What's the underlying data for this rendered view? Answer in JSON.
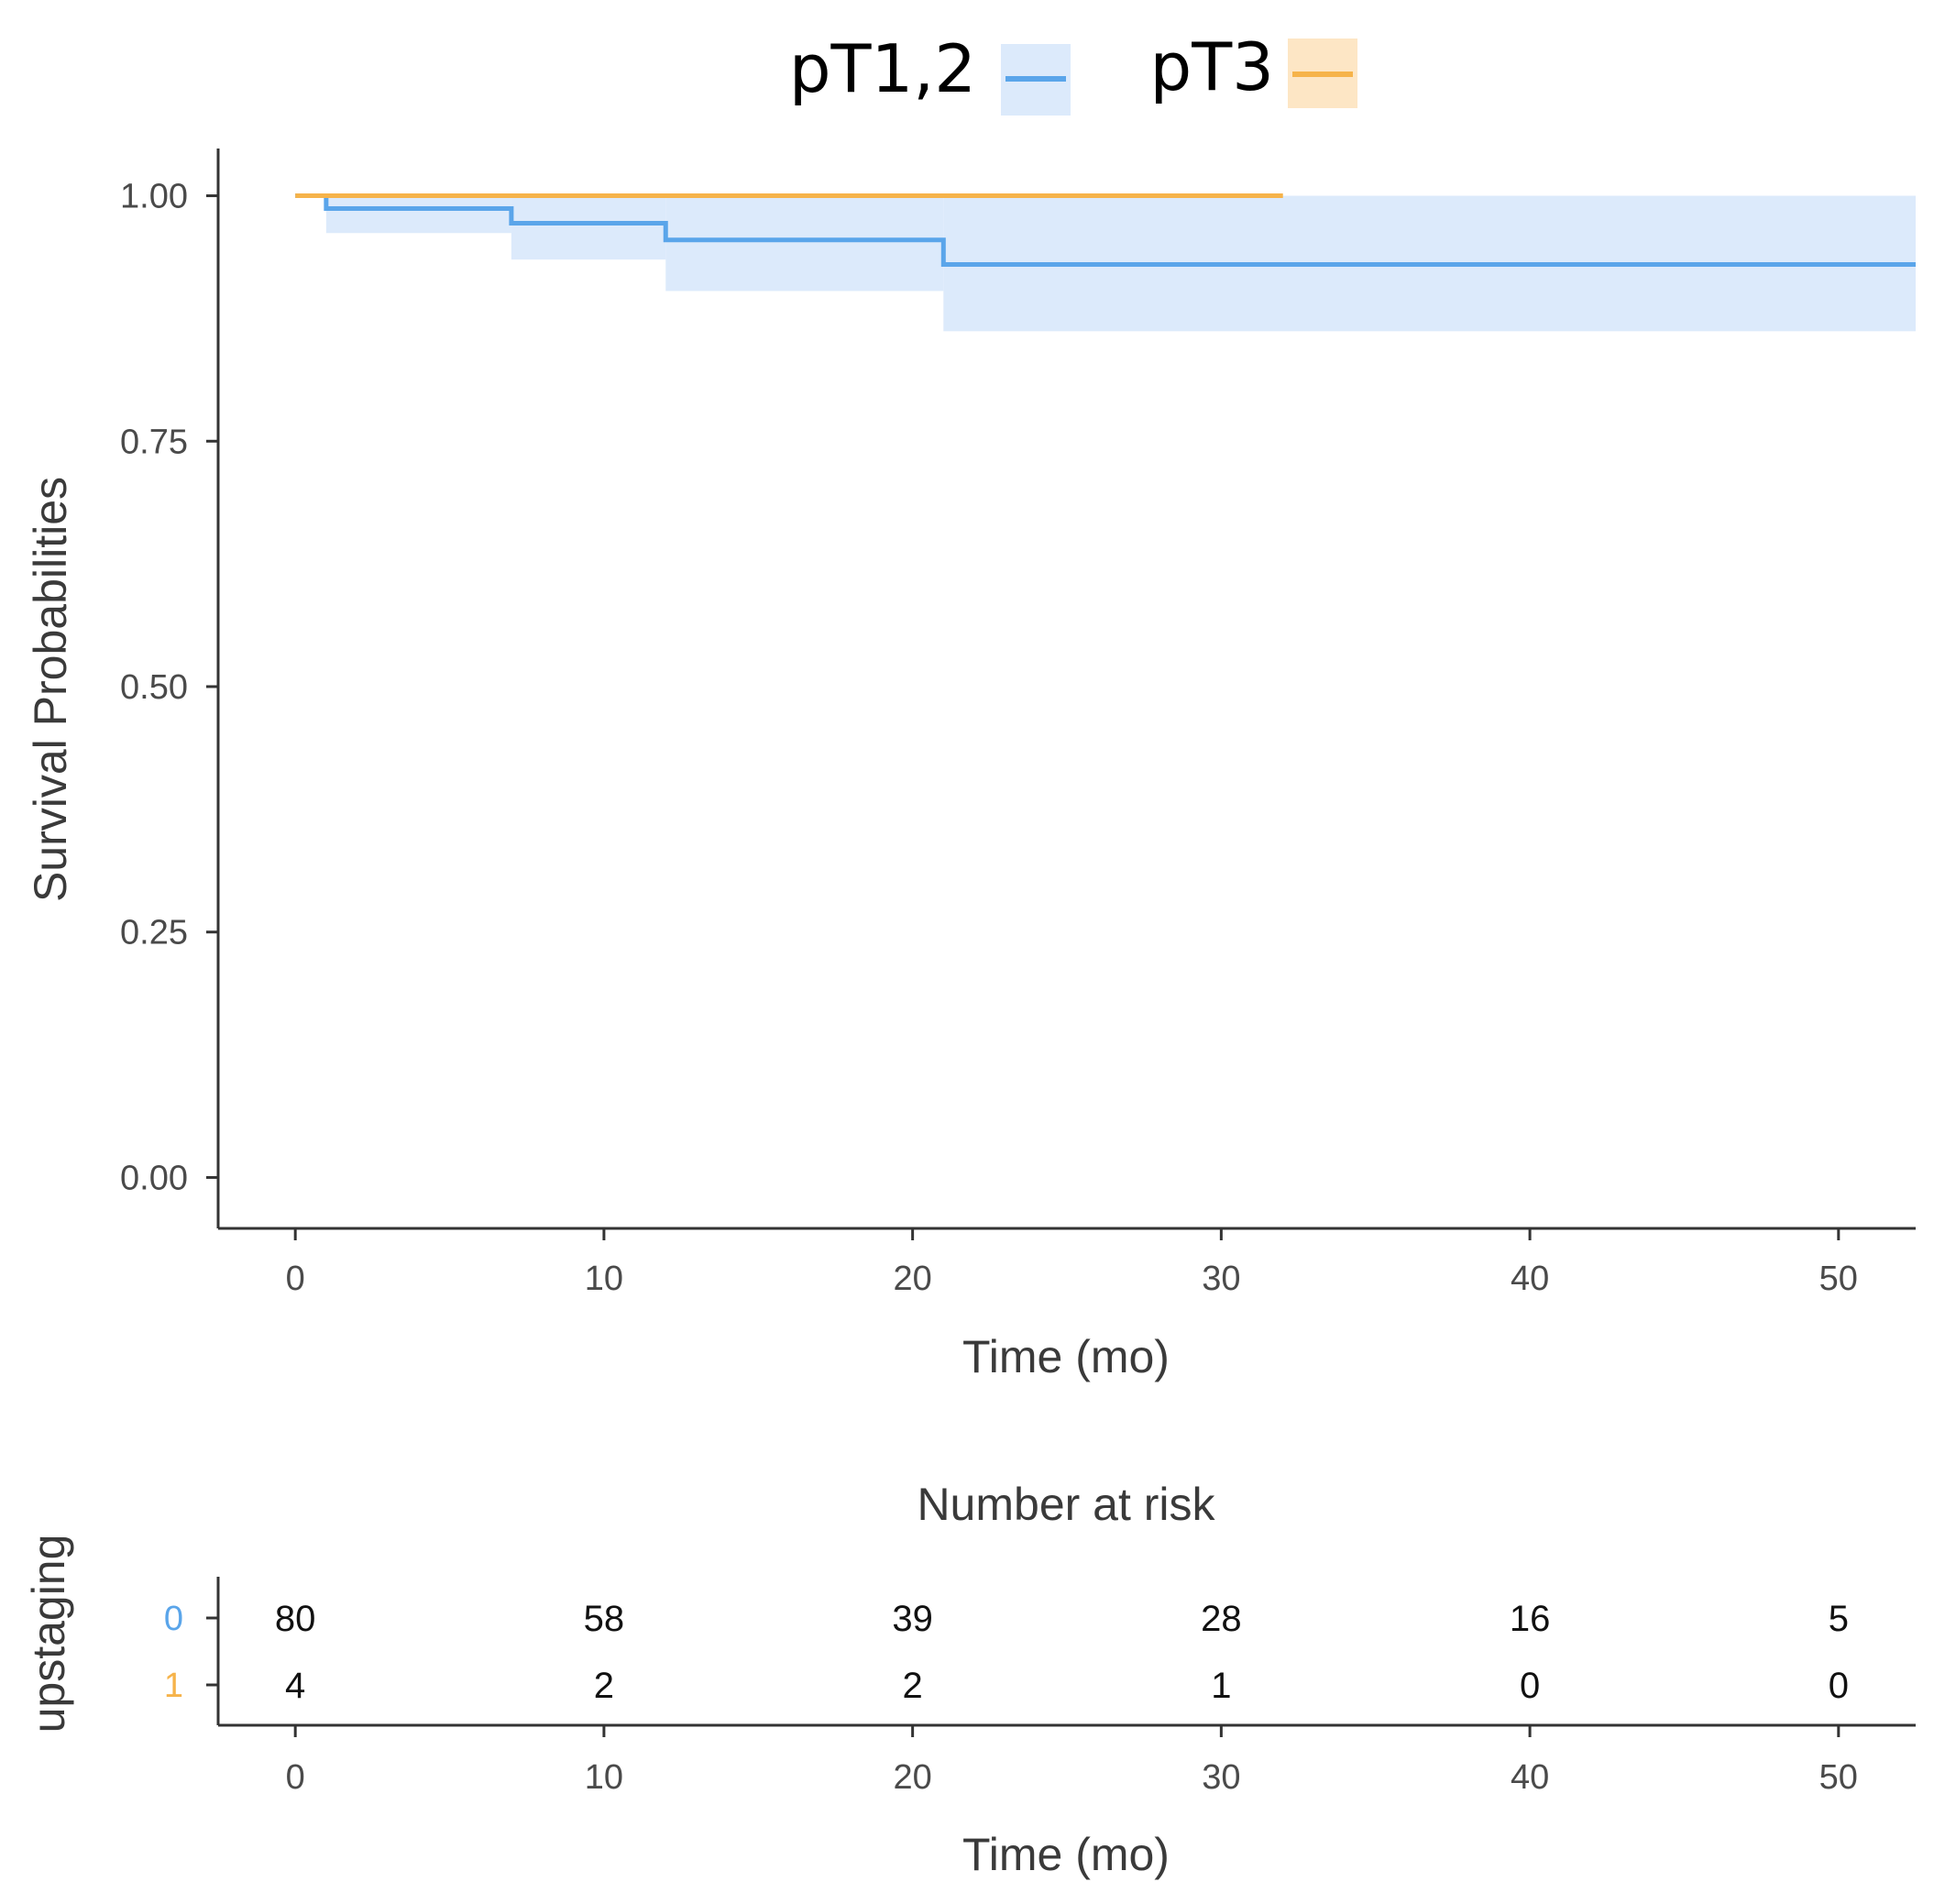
{
  "colors": {
    "series0": "#5aa5ea",
    "series0_band": "#dceafb",
    "series1": "#f6b34a",
    "series1_band": "#fde6c5",
    "axis": "#333333",
    "tick_text": "#4a4a4a",
    "label_text": "#3a3a3a",
    "risk_text": "#111111"
  },
  "chart_data": [
    {
      "type": "line",
      "subtype": "kaplan-meier-step",
      "title": "",
      "xlabel": "Time (mo)",
      "ylabel": "Survival Probabilities",
      "xlim": [
        -2.5,
        52.5
      ],
      "ylim": [
        -0.05,
        1.05
      ],
      "xticks": [
        0,
        10,
        20,
        30,
        40,
        50
      ],
      "xtick_labels": [
        "0",
        "10",
        "20",
        "30",
        "40",
        "50"
      ],
      "yticks": [
        0,
        0.25,
        0.5,
        0.75,
        1.0
      ],
      "ytick_labels": [
        "0.00",
        "0.25",
        "0.50",
        "0.75",
        "1.00"
      ],
      "grid": false,
      "legend": {
        "position": "top-center",
        "entries": [
          {
            "label": "pT1,2",
            "series": 0
          },
          {
            "label": "pT3",
            "series": 1
          }
        ]
      },
      "series": [
        {
          "name": "pT1,2",
          "color_key": "series0",
          "x": [
            0,
            1,
            7,
            12,
            21,
            52.5
          ],
          "y": [
            1.0,
            0.987,
            0.972,
            0.955,
            0.93,
            0.93
          ],
          "ci_lower": [
            1.0,
            0.962,
            0.935,
            0.903,
            0.862,
            0.862
          ],
          "ci_upper": [
            1.0,
            1.0,
            1.0,
            1.0,
            1.0,
            1.0
          ]
        },
        {
          "name": "pT3",
          "color_key": "series1",
          "x": [
            0,
            32
          ],
          "y": [
            1.0,
            1.0
          ]
        }
      ]
    },
    {
      "type": "table",
      "title": "Number at risk",
      "xlabel": "Time (mo)",
      "ylabel": "upstaging",
      "xlim": [
        -2.5,
        52.5
      ],
      "xticks": [
        0,
        10,
        20,
        30,
        40,
        50
      ],
      "xtick_labels": [
        "0",
        "10",
        "20",
        "30",
        "40",
        "50"
      ],
      "groups": [
        {
          "label": "0",
          "color_key": "series0",
          "values": [
            80,
            58,
            39,
            28,
            16,
            5
          ]
        },
        {
          "label": "1",
          "color_key": "series1",
          "values": [
            4,
            2,
            2,
            1,
            0,
            0
          ]
        }
      ]
    }
  ]
}
